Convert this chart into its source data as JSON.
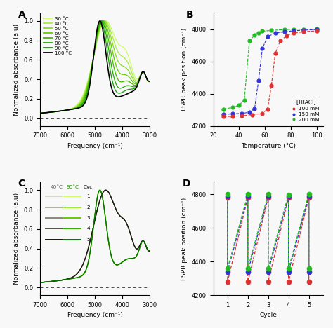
{
  "panel_A": {
    "title": "A",
    "xlabel": "Frequency (cm⁻¹)",
    "ylabel": "Normalized absorbance (a.u)",
    "xlim": [
      7000,
      3000
    ],
    "ylim": [
      -0.08,
      1.08
    ],
    "temps": [
      30,
      40,
      50,
      60,
      70,
      80,
      90,
      100
    ],
    "colors": [
      "#ccff66",
      "#aaee44",
      "#88dd22",
      "#66cc00",
      "#44bb00",
      "#22aa00",
      "#119900",
      "#000000"
    ]
  },
  "panel_B": {
    "title": "B",
    "xlabel": "Temperature (°C)",
    "ylabel": "LSPR peak position (cm⁻¹)",
    "xlim": [
      20,
      105
    ],
    "ylim": [
      4200,
      4900
    ],
    "series": {
      "100mM": {
        "color": "#e03030",
        "label": "100 mM",
        "temps": [
          28,
          35,
          42,
          50,
          58,
          62,
          65,
          68,
          72,
          77,
          82,
          90,
          100
        ],
        "peaks": [
          4258,
          4260,
          4263,
          4270,
          4278,
          4305,
          4450,
          4650,
          4730,
          4760,
          4775,
          4785,
          4790
        ]
      },
      "150mM": {
        "color": "#3333dd",
        "label": "150 mM",
        "temps": [
          28,
          35,
          42,
          48,
          52,
          55,
          58,
          62,
          68,
          75,
          82,
          90,
          100
        ],
        "peaks": [
          4272,
          4275,
          4278,
          4285,
          4308,
          4480,
          4680,
          4755,
          4775,
          4785,
          4790,
          4795,
          4798
        ]
      },
      "200mM": {
        "color": "#22bb22",
        "label": "200 mM",
        "temps": [
          28,
          35,
          40,
          44,
          48,
          52,
          55,
          58,
          65,
          75,
          82,
          90,
          100
        ],
        "peaks": [
          4305,
          4315,
          4330,
          4360,
          4730,
          4762,
          4778,
          4788,
          4793,
          4798,
          4800,
          4800,
          4801
        ]
      }
    }
  },
  "panel_C": {
    "title": "C",
    "xlabel": "Frequency (cm⁻¹)",
    "ylabel": "Normalized absorbance (a.u)",
    "xlim": [
      7000,
      3000
    ],
    "ylim": [
      -0.08,
      1.08
    ],
    "cold_colors": [
      "#d8d8c8",
      "#b0b0a0",
      "#888878",
      "#505040",
      "#181810"
    ],
    "hot_colors": [
      "#ccff66",
      "#99ee33",
      "#66cc00",
      "#33aa00",
      "#007700"
    ]
  },
  "panel_D": {
    "title": "D",
    "xlabel": "Cycle",
    "ylabel": "LSPR peak position (cm⁻¹)",
    "xlim": [
      0.3,
      5.7
    ],
    "ylim": [
      4200,
      4870
    ],
    "cycles": [
      1,
      2,
      3,
      4,
      5
    ],
    "series": {
      "100mM": {
        "color": "#e03030",
        "low": [
          4280,
          4280,
          4280,
          4278,
          4280
        ],
        "high": [
          4780,
          4780,
          4780,
          4778,
          4778
        ]
      },
      "150mM": {
        "color": "#3333dd",
        "low": [
          4340,
          4340,
          4340,
          4338,
          4340
        ],
        "high": [
          4788,
          4788,
          4788,
          4788,
          4788
        ]
      },
      "200mM": {
        "color": "#22bb22",
        "low": [
          4360,
          4360,
          4360,
          4358,
          4360
        ],
        "high": [
          4800,
          4800,
          4800,
          4798,
          4800
        ]
      }
    }
  },
  "bg_color": "#f8f8f8"
}
